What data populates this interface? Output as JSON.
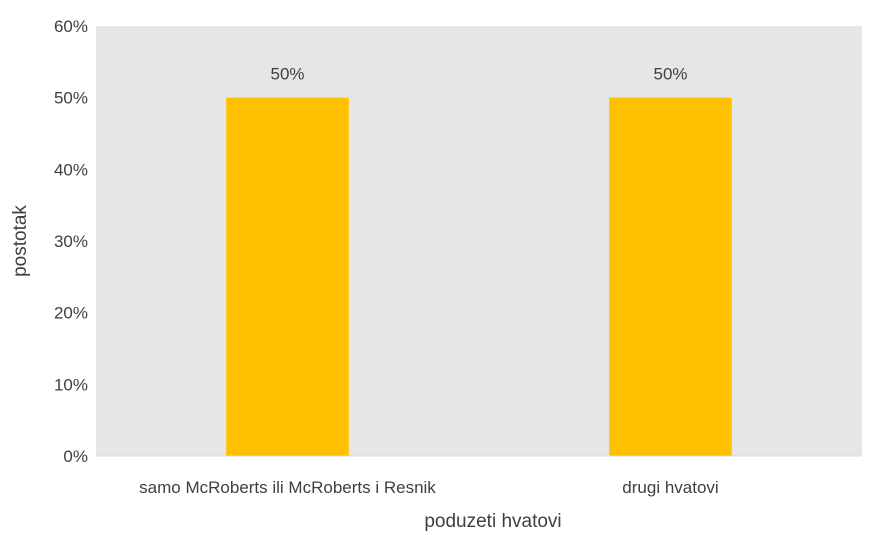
{
  "chart_data": {
    "type": "bar",
    "title": "",
    "xlabel": "poduzeti hvatovi",
    "ylabel": "postotak",
    "categories": [
      "samo McRoberts ili McRoberts i Resnik",
      "drugi hvatovi"
    ],
    "values": [
      50,
      50
    ],
    "data_labels": [
      "50%",
      "50%"
    ],
    "ylim": [
      0,
      60
    ],
    "y_ticks": [
      0,
      10,
      20,
      30,
      40,
      50,
      60
    ],
    "y_tick_labels": [
      "0%",
      "10%",
      "20%",
      "30%",
      "40%",
      "50%",
      "60%"
    ],
    "grid": false,
    "legend": "none",
    "colors": {
      "bar": "#FFC000",
      "plot_background": "#E7E6E6",
      "axis_line": "#D9D9D9",
      "text": "#404040"
    }
  }
}
